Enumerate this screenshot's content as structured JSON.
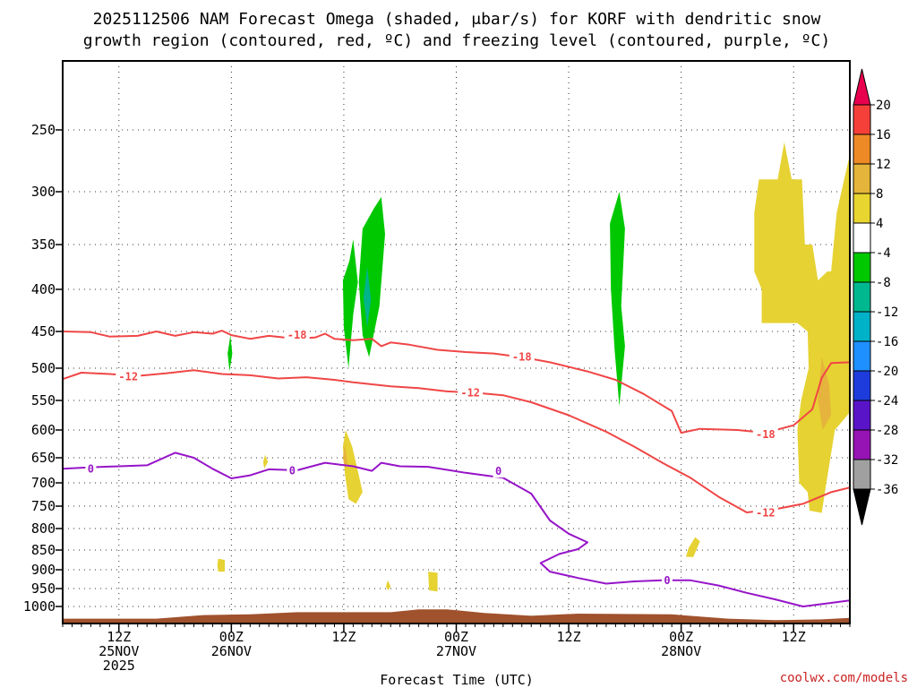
{
  "chart_data": {
    "type": "time-height contour",
    "title_lines": [
      "2025112506 NAM Forecast Omega (shaded, μbar/s) for KORF with dendritic snow",
      "growth region (contoured, red, ºC) and freezing level (contoured, purple, ºC)"
    ],
    "xlabel": "Forecast Time (UTC)",
    "credit": "coolwx.com/models",
    "x_range_hours": [
      0,
      84
    ],
    "x_ticks": [
      {
        "hour": 6,
        "lines": [
          "12Z",
          "25NOV",
          "2025"
        ]
      },
      {
        "hour": 18,
        "lines": [
          "00Z",
          "26NOV"
        ]
      },
      {
        "hour": 30,
        "lines": [
          "12Z"
        ]
      },
      {
        "hour": 42,
        "lines": [
          "00Z",
          "27NOV"
        ]
      },
      {
        "hour": 54,
        "lines": [
          "12Z"
        ]
      },
      {
        "hour": 66,
        "lines": [
          "00Z",
          "28NOV"
        ]
      },
      {
        "hour": 78,
        "lines": [
          "12Z"
        ]
      }
    ],
    "y_ticks_hpa": [
      {
        "p": 250,
        "label": "250"
      },
      {
        "p": 300,
        "label": "300"
      },
      {
        "p": 350,
        "label": "350"
      },
      {
        "p": 400,
        "label": "400"
      },
      {
        "p": 450,
        "label": "450"
      },
      {
        "p": 500,
        "label": "500"
      },
      {
        "p": 550,
        "label": "550"
      },
      {
        "p": 600,
        "label": "600"
      },
      {
        "p": 650,
        "label": "650"
      },
      {
        "p": 700,
        "label": "700"
      },
      {
        "p": 750,
        "label": "750"
      },
      {
        "p": 800,
        "label": "800"
      },
      {
        "p": 850,
        "label": "850"
      },
      {
        "p": 900,
        "label": "900"
      },
      {
        "p": 950,
        "label": "950"
      },
      {
        "p": 1000,
        "label": "1000"
      }
    ],
    "grid": true,
    "colorbar": {
      "position": "right",
      "labels": [
        "20",
        "16",
        "12",
        "8",
        "4",
        "-4",
        "-8",
        "-12",
        "-16",
        "-20",
        "-24",
        "-28",
        "-32",
        "-36"
      ],
      "colors": [
        "#e8004e",
        "#f5403a",
        "#ee8a26",
        "#e4b53a",
        "#e9d52f",
        "#ffffff",
        "#00c800",
        "#00b890",
        "#00b2c8",
        "#1e90ff",
        "#1e3cdc",
        "#5a14c8",
        "#9614b4",
        "#a0a0a0",
        "#000000"
      ]
    },
    "omega_color_positive": "#e6d232",
    "omega_color_strong": "#e6b43c",
    "omega_color_negative": "#00c800",
    "omega_color_negative_strong": "#00b48c",
    "isotherm_red_color": "#f04646",
    "freezing_line_color": "#9614c8",
    "terrain_color": "#a0522d",
    "isotherms": [
      {
        "temp_c": -18,
        "label": "-18",
        "label_points": [
          [
            25.0,
            455
          ],
          [
            49.0,
            485
          ],
          [
            75.0,
            608
          ]
        ],
        "points": [
          [
            0,
            450
          ],
          [
            3,
            451
          ],
          [
            5,
            457
          ],
          [
            8,
            456
          ],
          [
            10,
            450
          ],
          [
            12,
            456
          ],
          [
            14,
            451
          ],
          [
            16,
            453
          ],
          [
            17,
            449
          ],
          [
            18,
            455
          ],
          [
            20,
            460
          ],
          [
            22,
            456
          ],
          [
            25,
            460
          ],
          [
            27,
            458
          ],
          [
            28,
            453
          ],
          [
            29,
            460
          ],
          [
            31,
            462
          ],
          [
            33,
            460
          ],
          [
            34,
            470
          ],
          [
            35,
            465
          ],
          [
            37,
            468
          ],
          [
            40,
            475
          ],
          [
            43,
            478
          ],
          [
            46,
            480
          ],
          [
            49,
            485
          ],
          [
            52,
            492
          ],
          [
            56,
            505
          ],
          [
            59,
            518
          ],
          [
            62,
            540
          ],
          [
            65,
            568
          ],
          [
            66,
            605
          ],
          [
            68,
            598
          ],
          [
            72,
            600
          ],
          [
            75,
            605
          ],
          [
            78,
            592
          ],
          [
            80,
            565
          ],
          [
            81,
            515
          ],
          [
            82,
            493
          ],
          [
            84,
            492
          ]
        ]
      },
      {
        "temp_c": -12,
        "label": "-12",
        "label_points": [
          [
            7.0,
            513
          ],
          [
            43.5,
            538
          ],
          [
            75.0,
            765
          ]
        ],
        "points": [
          [
            0,
            517
          ],
          [
            2,
            507
          ],
          [
            5,
            509
          ],
          [
            8,
            512
          ],
          [
            11,
            508
          ],
          [
            14,
            503
          ],
          [
            17,
            509
          ],
          [
            20,
            511
          ],
          [
            23,
            516
          ],
          [
            26,
            514
          ],
          [
            29,
            518
          ],
          [
            31,
            522
          ],
          [
            33,
            525
          ],
          [
            35,
            528
          ],
          [
            38,
            531
          ],
          [
            41,
            536
          ],
          [
            44,
            538
          ],
          [
            47,
            542
          ],
          [
            50,
            553
          ],
          [
            54,
            575
          ],
          [
            58,
            603
          ],
          [
            61,
            630
          ],
          [
            64,
            660
          ],
          [
            67,
            690
          ],
          [
            70,
            730
          ],
          [
            73,
            764
          ],
          [
            76,
            757
          ],
          [
            79,
            745
          ],
          [
            82,
            720
          ],
          [
            84,
            710
          ]
        ]
      }
    ],
    "freezing_level": {
      "temp_c": 0,
      "label": "0",
      "label_points": [
        [
          3.0,
          672
        ],
        [
          24.5,
          676
        ],
        [
          46.5,
          677
        ],
        [
          64.5,
          928
        ]
      ],
      "points": [
        [
          0,
          672
        ],
        [
          3,
          669
        ],
        [
          6,
          667
        ],
        [
          9,
          665
        ],
        [
          12,
          641
        ],
        [
          14,
          650
        ],
        [
          16,
          672
        ],
        [
          18,
          691
        ],
        [
          20,
          685
        ],
        [
          22,
          673
        ],
        [
          25,
          675
        ],
        [
          28,
          660
        ],
        [
          31,
          667
        ],
        [
          33,
          676
        ],
        [
          34,
          660
        ],
        [
          36,
          667
        ],
        [
          39,
          668
        ],
        [
          43,
          680
        ],
        [
          47,
          690
        ],
        [
          50,
          723
        ],
        [
          52,
          782
        ],
        [
          54,
          812
        ],
        [
          56,
          832
        ],
        [
          55,
          848
        ],
        [
          53,
          860
        ],
        [
          51,
          883
        ],
        [
          52,
          905
        ],
        [
          55,
          922
        ],
        [
          58,
          937
        ],
        [
          61,
          931
        ],
        [
          64,
          928
        ],
        [
          67,
          928
        ],
        [
          70,
          942
        ],
        [
          73,
          962
        ],
        [
          76,
          980
        ],
        [
          79,
          1000
        ],
        [
          82,
          990
        ],
        [
          84,
          983
        ]
      ]
    },
    "omega_regions": [
      {
        "value_class": "-4 to -8",
        "points": [
          [
            32.0,
            335
          ],
          [
            33.2,
            316
          ],
          [
            34.0,
            305
          ],
          [
            34.4,
            340
          ],
          [
            33.8,
            420
          ],
          [
            32.7,
            485
          ],
          [
            32.0,
            455
          ],
          [
            31.6,
            392
          ]
        ]
      },
      {
        "value_class": "-4 to -8",
        "points": [
          [
            31.0,
            345
          ],
          [
            31.5,
            392
          ],
          [
            31.0,
            430
          ],
          [
            30.5,
            500
          ],
          [
            30.0,
            445
          ],
          [
            29.9,
            390
          ],
          [
            30.6,
            368
          ]
        ]
      },
      {
        "value_class": "-8 to -12",
        "points": [
          [
            32.5,
            375
          ],
          [
            32.9,
            412
          ],
          [
            32.5,
            445
          ],
          [
            32.1,
            410
          ]
        ]
      },
      {
        "value_class": "-4 to -8",
        "points": [
          [
            59.4,
            300
          ],
          [
            60.0,
            335
          ],
          [
            59.6,
            420
          ],
          [
            60.0,
            470
          ],
          [
            59.4,
            560
          ],
          [
            58.9,
            475
          ],
          [
            58.5,
            400
          ],
          [
            58.4,
            330
          ]
        ]
      },
      {
        "value_class": "-4 to -8",
        "points": [
          [
            17.9,
            455
          ],
          [
            18.1,
            480
          ],
          [
            17.8,
            505
          ],
          [
            17.6,
            480
          ]
        ]
      },
      {
        "value_class": "4 to 8",
        "points": [
          [
            30.2,
            600
          ],
          [
            30.9,
            630
          ],
          [
            31.6,
            685
          ],
          [
            32.0,
            720
          ],
          [
            31.3,
            745
          ],
          [
            30.5,
            735
          ],
          [
            30.1,
            680
          ],
          [
            29.9,
            630
          ]
        ]
      },
      {
        "value_class": "8 to 12",
        "points": [
          [
            30.1,
            625
          ],
          [
            30.4,
            660
          ],
          [
            30.1,
            670
          ],
          [
            29.9,
            650
          ]
        ]
      },
      {
        "value_class": "4 to 8",
        "points": [
          [
            73.8,
            320
          ],
          [
            74.3,
            290
          ],
          [
            76.3,
            290
          ],
          [
            77.0,
            260
          ],
          [
            77.8,
            290
          ],
          [
            78.9,
            290
          ],
          [
            79.2,
            350
          ],
          [
            80.0,
            350
          ],
          [
            80.6,
            390
          ],
          [
            81.6,
            380
          ],
          [
            82.0,
            380
          ],
          [
            82.6,
            320
          ],
          [
            83.4,
            290
          ],
          [
            84.0,
            270
          ],
          [
            84.0,
            570
          ],
          [
            82.4,
            600
          ],
          [
            81.5,
            700
          ],
          [
            81.0,
            765
          ],
          [
            79.7,
            760
          ],
          [
            79.5,
            720
          ],
          [
            78.6,
            700
          ],
          [
            78.4,
            600
          ],
          [
            78.8,
            550
          ],
          [
            79.6,
            500
          ],
          [
            79.5,
            450
          ],
          [
            78.4,
            440
          ],
          [
            78.0,
            440
          ],
          [
            74.6,
            440
          ],
          [
            74.6,
            400
          ],
          [
            73.8,
            380
          ]
        ]
      },
      {
        "value_class": "8 to 12",
        "points": [
          [
            81.0,
            485
          ],
          [
            81.8,
            525
          ],
          [
            82.0,
            575
          ],
          [
            81.1,
            600
          ],
          [
            80.6,
            550
          ]
        ]
      },
      {
        "value_class": "4 to 8",
        "points": [
          [
            67.5,
            820
          ],
          [
            68.0,
            830
          ],
          [
            67.3,
            868
          ],
          [
            66.5,
            867
          ],
          [
            66.8,
            845
          ]
        ]
      },
      {
        "value_class": "4 to 8",
        "points": [
          [
            16.6,
            872
          ],
          [
            17.3,
            875
          ],
          [
            17.3,
            905
          ],
          [
            16.6,
            905
          ],
          [
            16.5,
            888
          ]
        ]
      },
      {
        "value_class": "4 to 8",
        "points": [
          [
            21.6,
            645
          ],
          [
            21.9,
            658
          ],
          [
            21.5,
            672
          ],
          [
            21.4,
            658
          ]
        ]
      },
      {
        "value_class": "4 to 8",
        "points": [
          [
            39.0,
            905
          ],
          [
            40.0,
            908
          ],
          [
            40.0,
            958
          ],
          [
            39.1,
            955
          ]
        ]
      },
      {
        "value_class": "4 to 8",
        "points": [
          [
            34.7,
            928
          ],
          [
            35.0,
            945
          ],
          [
            34.7,
            955
          ],
          [
            34.5,
            944
          ]
        ]
      }
    ],
    "terrain": [
      [
        0,
        1017
      ],
      [
        10,
        1017
      ],
      [
        15,
        1012
      ],
      [
        20,
        1011
      ],
      [
        25,
        1008
      ],
      [
        35,
        1008
      ],
      [
        38,
        1004
      ],
      [
        41,
        1004
      ],
      [
        45,
        1009
      ],
      [
        50,
        1013
      ],
      [
        55,
        1010
      ],
      [
        65,
        1011
      ],
      [
        71,
        1017
      ],
      [
        76,
        1019
      ],
      [
        81,
        1018
      ],
      [
        84,
        1016
      ]
    ]
  }
}
